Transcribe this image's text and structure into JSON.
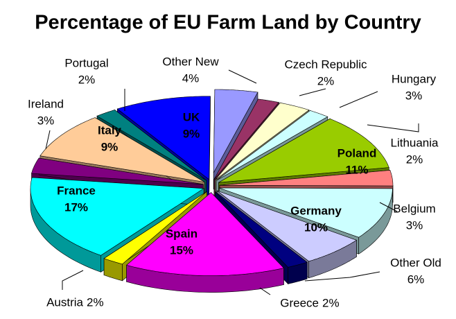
{
  "chart_data": {
    "type": "pie",
    "title": "Percentage of EU Farm Land by Country",
    "categories": [
      "UK",
      "Other New",
      "Czech Republic",
      "Hungary",
      "Lithuania",
      "Poland",
      "Belgium",
      "Germany",
      "Other Old",
      "Greece",
      "Spain",
      "Austria",
      "France",
      "Ireland",
      "Italy",
      "Portugal"
    ],
    "values": [
      9,
      4,
      2,
      3,
      2,
      11,
      3,
      10,
      6,
      2,
      15,
      2,
      17,
      3,
      9,
      2
    ],
    "value_labels": [
      "9%",
      "4%",
      "2%",
      "3%",
      "2%",
      "11%",
      "3%",
      "10%",
      "6%",
      "2%",
      "15%",
      "2%",
      "17%",
      "3%",
      "9%",
      "2%"
    ],
    "colors": [
      "#0000ff",
      "#9999ff",
      "#993366",
      "#ffffcc",
      "#ccffff",
      "#99cc00",
      "#ff8080",
      "#ccffff",
      "#ccccff",
      "#000080",
      "#ff00ff",
      "#ffff00",
      "#00ffff",
      "#800080",
      "#ffcc99",
      "#008080"
    ]
  }
}
